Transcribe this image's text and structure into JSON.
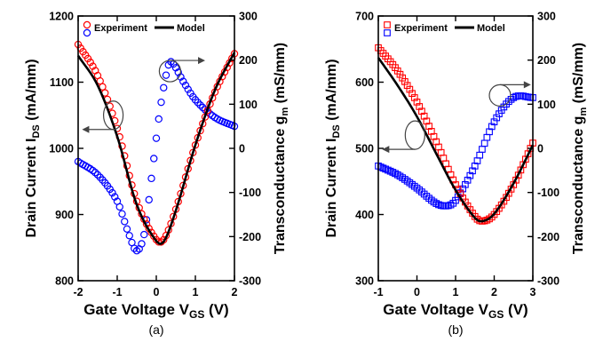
{
  "colors": {
    "experiment_id": "#ff0000",
    "experiment_gm": "#0000ff",
    "model": "#000000"
  },
  "chart_data": [
    {
      "type": "scatter",
      "panel_label": "(a)",
      "marker": "circle",
      "xlabel": "Gate Voltage V",
      "xlabel_sub": "GS",
      "xlabel_suffix": " (V)",
      "ylabel_left": "Drain Current I",
      "ylabel_left_sub": "DS",
      "ylabel_left_suffix": " (mA/mm)",
      "ylabel_right": "Transconductance g",
      "ylabel_right_sub": "m",
      "ylabel_right_suffix": " (mS/mm)",
      "xlim": [
        -2,
        2
      ],
      "ylim_left": [
        800,
        1200
      ],
      "ylim_right": [
        -300,
        300
      ],
      "xticks": [
        "-2",
        "-1",
        "0",
        "1",
        "2"
      ],
      "yticks_left": [
        "800",
        "900",
        "1000",
        "1100",
        "1200"
      ],
      "yticks_right": [
        "-300",
        "-200",
        "-100",
        "0",
        "100",
        "200",
        "300"
      ],
      "legend": {
        "experiment": "Experiment",
        "model": "Model"
      },
      "series": [
        {
          "name": "Experiment",
          "axis": "left",
          "color": "#ff0000",
          "x": [
            -2.0,
            -1.5,
            -1.0,
            -0.5,
            0.0,
            0.2,
            0.5,
            1.0,
            1.5,
            2.0
          ],
          "values": [
            1157,
            1110,
            1030,
            920,
            862,
            863,
            908,
            1005,
            1085,
            1143
          ]
        },
        {
          "name": "Experiment",
          "axis": "right",
          "color": "#0000ff",
          "x": [
            -2.0,
            -1.5,
            -1.0,
            -0.7,
            -0.5,
            -0.3,
            -0.1,
            0.1,
            0.3,
            0.4,
            0.7,
            1.0,
            1.5,
            2.0
          ],
          "values": [
            -30,
            -60,
            -120,
            -195,
            -232,
            -190,
            -50,
            90,
            185,
            195,
            150,
            110,
            70,
            50
          ]
        },
        {
          "name": "Model",
          "axis": "left",
          "color": "#000000",
          "x": [
            -2.0,
            -1.5,
            -1.0,
            -0.5,
            0.0,
            0.2,
            0.5,
            1.0,
            1.5,
            2.0
          ],
          "values": [
            1140,
            1095,
            1018,
            915,
            860,
            860,
            906,
            1005,
            1088,
            1145
          ]
        }
      ]
    },
    {
      "type": "scatter",
      "panel_label": "(b)",
      "marker": "square",
      "xlabel": "Gate Voltage V",
      "xlabel_sub": "GS",
      "xlabel_suffix": " (V)",
      "ylabel_left": "Drain Current I",
      "ylabel_left_sub": "DS",
      "ylabel_left_suffix": " (mA/mm)",
      "ylabel_right": "Transconductance g",
      "ylabel_right_sub": "m",
      "ylabel_right_suffix": " (mS/mm)",
      "xlim": [
        -1,
        3
      ],
      "ylim_left": [
        300,
        700
      ],
      "ylim_right": [
        -300,
        300
      ],
      "xticks": [
        "-1",
        "0",
        "1",
        "2",
        "3"
      ],
      "yticks_left": [
        "300",
        "400",
        "500",
        "600",
        "700"
      ],
      "yticks_right": [
        "-300",
        "-200",
        "-100",
        "0",
        "100",
        "200",
        "300"
      ],
      "legend": {
        "experiment": "Experiment",
        "model": "Model"
      },
      "series": [
        {
          "name": "Experiment",
          "axis": "left",
          "color": "#ff0000",
          "x": [
            -1.0,
            -0.5,
            0.0,
            0.5,
            1.0,
            1.5,
            1.7,
            2.0,
            2.5,
            3.0
          ],
          "values": [
            652,
            617,
            570,
            510,
            445,
            397,
            390,
            400,
            445,
            508
          ]
        },
        {
          "name": "Experiment",
          "axis": "right",
          "color": "#0000ff",
          "x": [
            -1.0,
            -0.5,
            0.0,
            0.5,
            0.8,
            1.0,
            1.5,
            2.0,
            2.5,
            3.0
          ],
          "values": [
            -40,
            -60,
            -90,
            -125,
            -130,
            -118,
            -40,
            60,
            115,
            115
          ]
        },
        {
          "name": "Model",
          "axis": "left",
          "color": "#000000",
          "x": [
            -1.0,
            -0.5,
            0.0,
            0.5,
            1.0,
            1.5,
            1.7,
            2.0,
            2.5,
            3.0
          ],
          "values": [
            637,
            595,
            548,
            492,
            437,
            395,
            390,
            401,
            447,
            505
          ]
        }
      ]
    }
  ]
}
